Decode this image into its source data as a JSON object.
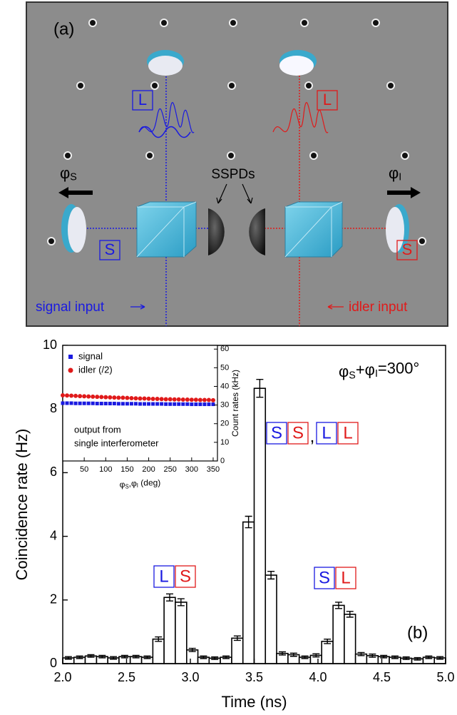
{
  "diagram": {
    "panel_label": "(a)",
    "long_arm_left": "L",
    "long_arm_right": "L",
    "short_arm_left": "S",
    "short_arm_right": "S",
    "phase_left": [
      {
        "text": "φ"
      },
      {
        "text": "S",
        "sub": true
      }
    ],
    "phase_right": [
      {
        "text": "φ"
      },
      {
        "text": "I",
        "sub": true
      }
    ],
    "detectors": "SSPDs",
    "signal_input": "signal input",
    "idler_input": "idler input",
    "signal_color": "#1a1ae0",
    "idler_color": "#e01a1a"
  },
  "chart_data": [
    {
      "type": "histogram",
      "panel_label": "(b)",
      "x_label": "Time (ns)",
      "y_label": "Coincidence rate (Hz)",
      "bins": [
        2.0,
        2.088,
        2.176,
        2.265,
        2.353,
        2.441,
        2.529,
        2.618,
        2.706,
        2.794,
        2.882,
        2.971,
        3.059,
        3.147,
        3.235,
        3.324,
        3.412,
        3.5,
        3.588,
        3.676,
        3.765,
        3.853,
        3.941,
        4.029,
        4.118,
        4.206,
        4.294,
        4.382,
        4.471,
        4.559,
        4.647,
        4.735,
        4.824,
        4.912,
        5.0
      ],
      "values": [
        0.18,
        0.2,
        0.24,
        0.22,
        0.18,
        0.22,
        0.22,
        0.2,
        0.77,
        2.08,
        1.93,
        0.43,
        0.2,
        0.17,
        0.2,
        0.8,
        4.45,
        8.65,
        2.78,
        0.32,
        0.28,
        0.2,
        0.26,
        0.7,
        1.83,
        1.55,
        0.3,
        0.25,
        0.22,
        0.2,
        0.17,
        0.15,
        0.2,
        0.18
      ],
      "errors": [
        0.04,
        0.04,
        0.04,
        0.04,
        0.04,
        0.04,
        0.04,
        0.04,
        0.07,
        0.11,
        0.11,
        0.05,
        0.04,
        0.04,
        0.04,
        0.07,
        0.18,
        0.28,
        0.12,
        0.05,
        0.05,
        0.04,
        0.05,
        0.07,
        0.1,
        0.09,
        0.05,
        0.05,
        0.04,
        0.04,
        0.04,
        0.04,
        0.04,
        0.04
      ],
      "color": "#000000",
      "xlim": [
        2.0,
        5.0
      ],
      "xticks": [
        {
          "value": 2.0,
          "label": "2.0"
        },
        2.5,
        {
          "value": 3.0,
          "label": "3.0"
        },
        3.5,
        {
          "value": 4.0,
          "label": "4.0"
        },
        4.5,
        {
          "value": 5.0,
          "label": "5.0"
        }
      ],
      "ylim": [
        0,
        10
      ],
      "yticks": [
        0,
        2,
        4,
        6,
        8,
        10
      ],
      "annotation": [
        {
          "text": "φ"
        },
        {
          "text": "S",
          "sub": true
        },
        {
          "text": "+φ"
        },
        {
          "text": "I",
          "sub": true
        },
        {
          "text": "=300°"
        }
      ],
      "peak_labels": [
        [
          {
            "text": "L",
            "color": "#1a1ae0"
          },
          {
            "text": "S",
            "color": "#e01a1a"
          }
        ],
        [
          {
            "text": "S",
            "color": "#1a1ae0"
          },
          {
            "text": "S",
            "color": "#e01a1a"
          },
          {
            "text": ","
          },
          {
            "text": "L",
            "color": "#1a1ae0"
          },
          {
            "text": "L",
            "color": "#e01a1a"
          }
        ],
        [
          {
            "text": "S",
            "color": "#1a1ae0"
          },
          {
            "text": "L",
            "color": "#e01a1a"
          }
        ]
      ]
    },
    {
      "type": "scatter",
      "x_label": [
        {
          "text": "φ"
        },
        {
          "text": "S",
          "sub": true
        },
        {
          "text": ",φ"
        },
        {
          "text": "I",
          "sub": true
        },
        {
          "text": " (deg)"
        }
      ],
      "y_label": "Count rates (kHz)",
      "note": [
        "output from",
        "single interferometer"
      ],
      "x": [
        0,
        10,
        20,
        30,
        40,
        50,
        60,
        70,
        80,
        90,
        100,
        110,
        120,
        130,
        140,
        150,
        160,
        170,
        180,
        190,
        200,
        210,
        220,
        230,
        240,
        250,
        260,
        270,
        280,
        290,
        300,
        310,
        320,
        330,
        340,
        350
      ],
      "series": [
        {
          "name": "signal",
          "color": "#1a1ae0",
          "marker": "square",
          "values": [
            31.0,
            31.0,
            31.0,
            30.9,
            30.9,
            30.9,
            30.9,
            30.9,
            30.8,
            30.8,
            30.8,
            30.8,
            30.8,
            30.7,
            30.7,
            30.7,
            30.7,
            30.7,
            30.6,
            30.6,
            30.6,
            30.6,
            30.6,
            30.6,
            30.5,
            30.5,
            30.5,
            30.5,
            30.5,
            30.5,
            30.4,
            30.4,
            30.4,
            30.4,
            30.4,
            30.4
          ]
        },
        {
          "name": "idler (/2)",
          "color": "#e01a1a",
          "marker": "circle",
          "values": [
            35.2,
            35.1,
            35.0,
            34.9,
            34.8,
            34.7,
            34.6,
            34.5,
            34.4,
            34.3,
            34.2,
            34.1,
            34.0,
            33.9,
            33.9,
            33.8,
            33.7,
            33.6,
            33.5,
            33.5,
            33.4,
            33.3,
            33.3,
            33.2,
            33.1,
            33.1,
            33.0,
            33.0,
            32.9,
            32.9,
            32.8,
            32.8,
            32.7,
            32.7,
            32.7,
            32.6
          ]
        }
      ],
      "xlim": [
        0,
        360
      ],
      "xticks": [
        50,
        100,
        150,
        200,
        250,
        300,
        350
      ],
      "ylim": [
        0,
        62
      ],
      "yticks": [
        0,
        10,
        20,
        30,
        40,
        50,
        60
      ],
      "legend": "upper left"
    }
  ]
}
